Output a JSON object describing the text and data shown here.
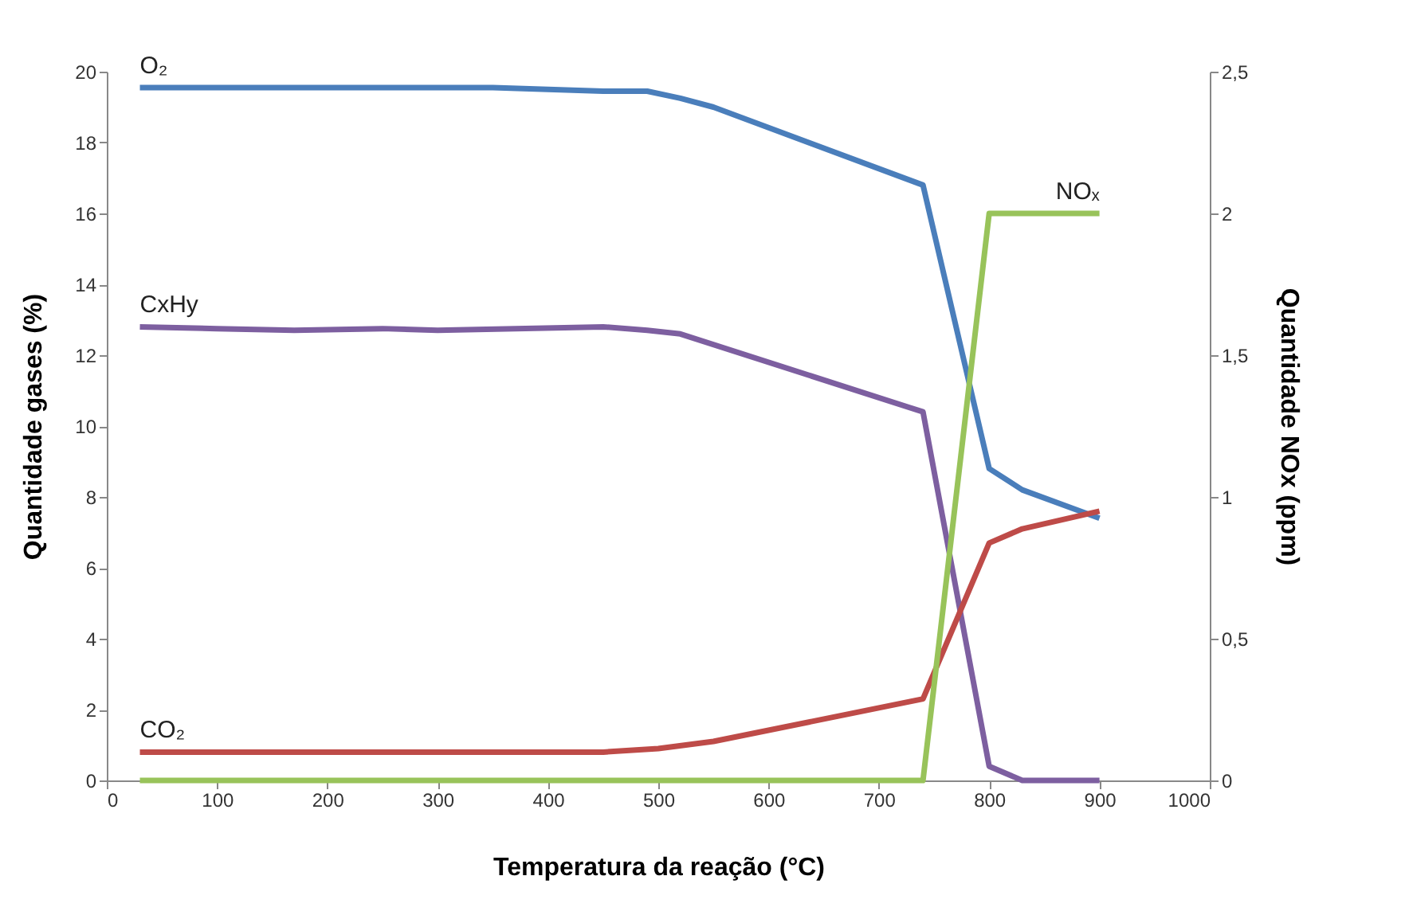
{
  "chart_data": {
    "type": "line",
    "xlabel": "Temperatura da reação (°C)",
    "ylabel": "Quantidade gases (%)",
    "y2label": "Quantidade NOx (ppm)",
    "xlim": [
      0,
      1000
    ],
    "xticks": [
      0,
      100,
      200,
      300,
      400,
      500,
      600,
      700,
      800,
      900,
      1000
    ],
    "ylim": [
      0,
      20
    ],
    "yticks": [
      0,
      2,
      4,
      6,
      8,
      10,
      12,
      14,
      16,
      18,
      20
    ],
    "y2lim": [
      0,
      2.5
    ],
    "y2ticks": [
      0,
      {
        "value": 0.5,
        "label": "0,5"
      },
      1,
      {
        "value": 1.5,
        "label": "1,5"
      },
      2,
      {
        "value": 2.5,
        "label": "2,5"
      }
    ],
    "grid": false,
    "legend": false,
    "marker": "none",
    "line_style": "solid",
    "series": [
      {
        "name": "O₂",
        "color": "#4a7ebb",
        "x": [
          30,
          350,
          450,
          490,
          520,
          550,
          740,
          800,
          830,
          900
        ],
        "values": [
          19.55,
          19.55,
          19.45,
          19.45,
          19.25,
          19.0,
          16.8,
          8.8,
          8.2,
          7.4
        ]
      },
      {
        "name": "CxHy",
        "color": "#7d5fa0",
        "x": [
          30,
          100,
          170,
          250,
          300,
          450,
          490,
          520,
          740,
          800,
          830,
          900
        ],
        "values": [
          12.8,
          12.75,
          12.7,
          12.75,
          12.7,
          12.8,
          12.7,
          12.6,
          10.4,
          0.4,
          0,
          0
        ]
      },
      {
        "name": "CO₂",
        "color": "#be4b48",
        "x": [
          30,
          450,
          500,
          550,
          740,
          800,
          830,
          900
        ],
        "values": [
          0.8,
          0.8,
          0.9,
          1.1,
          2.3,
          6.7,
          7.1,
          7.6
        ]
      },
      {
        "name": "NOₓ",
        "color": "#98c35a",
        "axis": "y2",
        "x": [
          30,
          740,
          800,
          900
        ],
        "values": [
          0,
          0,
          2,
          2
        ]
      }
    ]
  }
}
